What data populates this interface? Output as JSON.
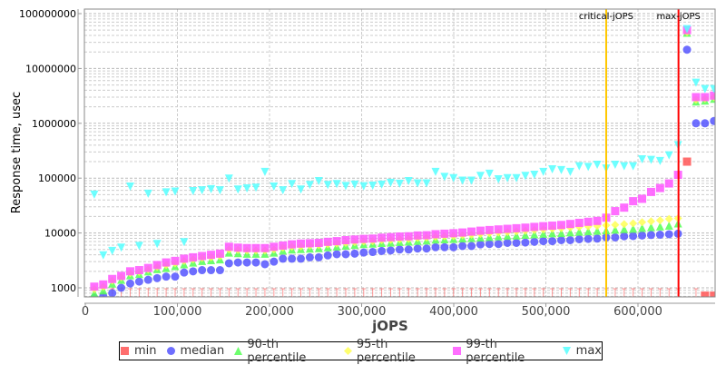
{
  "chart_data": {
    "type": "scatter",
    "title": "",
    "xlabel": "jOPS",
    "ylabel": "Response time, usec",
    "xlim": [
      0,
      684000
    ],
    "ylim": [
      680,
      120000000
    ],
    "yscale": "log",
    "grid": true,
    "legend_position": "bottom",
    "x_ticks": [
      {
        "value": 0,
        "label": "0"
      },
      {
        "value": 100000,
        "label": "100,000"
      },
      {
        "value": 200000,
        "label": "200,000"
      },
      {
        "value": 300000,
        "label": "300,000"
      },
      {
        "value": 400000,
        "label": "400,000"
      },
      {
        "value": 500000,
        "label": "500,000"
      },
      {
        "value": 600000,
        "label": "600,000"
      }
    ],
    "y_ticks": [
      {
        "value": 1000,
        "label": "1000"
      },
      {
        "value": 10000,
        "label": "10000"
      },
      {
        "value": 100000,
        "label": "100000"
      },
      {
        "value": 1000000,
        "label": "1000000"
      },
      {
        "value": 10000000,
        "label": "10000000"
      },
      {
        "value": 100000000,
        "label": "100000000"
      }
    ],
    "markers": [
      {
        "label": "critical-jOPS",
        "x": 565500,
        "color": "#ffc800"
      },
      {
        "label": "max-jOPS",
        "x": 644000,
        "color": "#ff0000"
      }
    ],
    "x_start": 9750,
    "x_step": 9750,
    "series": [
      {
        "name": "min",
        "color": "#ff5555",
        "shape": "square",
        "values": [
          500,
          500,
          500,
          500,
          500,
          500,
          500,
          500,
          500,
          500,
          500,
          500,
          500,
          500,
          500,
          500,
          500,
          500,
          500,
          500,
          500,
          500,
          500,
          500,
          500,
          500,
          500,
          500,
          500,
          500,
          500,
          500,
          500,
          500,
          500,
          500,
          500,
          500,
          500,
          500,
          500,
          500,
          500,
          500,
          500,
          500,
          500,
          500,
          500,
          500,
          500,
          500,
          500,
          500,
          500,
          500,
          500,
          500,
          500,
          500,
          500,
          500,
          500,
          500,
          500,
          500,
          200000,
          500,
          720,
          720
        ]
      },
      {
        "name": "median",
        "color": "#5555ff",
        "shape": "circle",
        "values": [
          650,
          700,
          800,
          1000,
          1200,
          1300,
          1400,
          1500,
          1600,
          1600,
          1900,
          2000,
          2100,
          2100,
          2100,
          2800,
          2900,
          2900,
          2900,
          2700,
          3000,
          3400,
          3400,
          3400,
          3600,
          3600,
          3900,
          4100,
          4100,
          4200,
          4400,
          4500,
          4700,
          4800,
          5000,
          5000,
          5200,
          5200,
          5500,
          5500,
          5500,
          5800,
          5800,
          6200,
          6300,
          6300,
          6600,
          6600,
          6700,
          6900,
          7100,
          7100,
          7400,
          7400,
          7700,
          7800,
          7900,
          8300,
          8300,
          8700,
          8800,
          9000,
          9200,
          9300,
          9500,
          9700,
          22000000,
          1000000,
          1000000,
          1100000
        ]
      },
      {
        "name": "90-th percentile",
        "color": "#55ff55",
        "shape": "triangle-up",
        "values": [
          800,
          900,
          1200,
          1400,
          1700,
          1800,
          2000,
          2200,
          2300,
          2500,
          2700,
          2900,
          3100,
          3200,
          3300,
          4400,
          4300,
          4200,
          4200,
          4200,
          4400,
          4800,
          5000,
          5100,
          5200,
          5300,
          5500,
          5700,
          5900,
          6100,
          6300,
          6400,
          6600,
          6700,
          6900,
          7000,
          7200,
          7300,
          7600,
          7700,
          7800,
          8000,
          8100,
          8300,
          8500,
          8700,
          8900,
          9000,
          9300,
          9500,
          9700,
          9900,
          10000,
          10300,
          10600,
          10800,
          11000,
          11200,
          11500,
          11800,
          12000,
          12400,
          12800,
          13200,
          13600,
          15000,
          45000000,
          2500000,
          2600000,
          2800000
        ]
      },
      {
        "name": "95-th percentile",
        "color": "#ffff55",
        "shape": "diamond",
        "values": [
          950,
          1050,
          1350,
          1550,
          1850,
          1950,
          2150,
          2400,
          2600,
          2800,
          3100,
          3300,
          3500,
          3600,
          3800,
          5000,
          4900,
          4800,
          4800,
          4800,
          5000,
          5400,
          5600,
          5700,
          5900,
          6000,
          6200,
          6400,
          6600,
          6800,
          7000,
          7100,
          7400,
          7500,
          7700,
          7800,
          8100,
          8200,
          8500,
          8700,
          8800,
          9100,
          9300,
          9600,
          9900,
          10200,
          10400,
          10700,
          11000,
          11300,
          11600,
          11900,
          12200,
          12600,
          12900,
          13200,
          13400,
          13800,
          14100,
          14500,
          15000,
          15700,
          16300,
          17000,
          18000,
          18500,
          46000000,
          2700000,
          2800000,
          3000000
        ]
      },
      {
        "name": "99-th percentile",
        "color": "#ff55ff",
        "shape": "square",
        "values": [
          1050,
          1150,
          1450,
          1650,
          2000,
          2100,
          2300,
          2600,
          2900,
          3100,
          3400,
          3600,
          3800,
          4000,
          4200,
          5600,
          5400,
          5300,
          5300,
          5300,
          5600,
          5900,
          6200,
          6400,
          6500,
          6600,
          6900,
          7100,
          7400,
          7600,
          7800,
          7900,
          8200,
          8400,
          8600,
          8700,
          9000,
          9100,
          9500,
          9700,
          9900,
          10200,
          10600,
          11000,
          11300,
          11600,
          11900,
          12200,
          12500,
          12900,
          13300,
          13600,
          14000,
          14600,
          15300,
          16000,
          16600,
          19000,
          25000,
          29000,
          38000,
          42000,
          56000,
          66000,
          80000,
          115000,
          50000000,
          3000000,
          3000000,
          3200000
        ]
      },
      {
        "name": "max",
        "color": "#55ffff",
        "shape": "triangle-down",
        "values": [
          50000,
          3900,
          4700,
          5400,
          70000,
          5800,
          52000,
          6300,
          55000,
          57000,
          6800,
          58000,
          60000,
          63000,
          60000,
          98000,
          62000,
          65000,
          67000,
          130000,
          70000,
          60000,
          78000,
          62000,
          75000,
          88000,
          75000,
          78000,
          72000,
          76000,
          71000,
          73000,
          76000,
          82000,
          79000,
          88000,
          80000,
          80000,
          130000,
          105000,
          100000,
          90000,
          90000,
          110000,
          120000,
          95000,
          100000,
          100000,
          110000,
          115000,
          130000,
          145000,
          140000,
          130000,
          165000,
          160000,
          175000,
          150000,
          175000,
          165000,
          165000,
          220000,
          215000,
          205000,
          260000,
          400000,
          52000000,
          5500000,
          4200000,
          4200000
        ]
      }
    ]
  }
}
